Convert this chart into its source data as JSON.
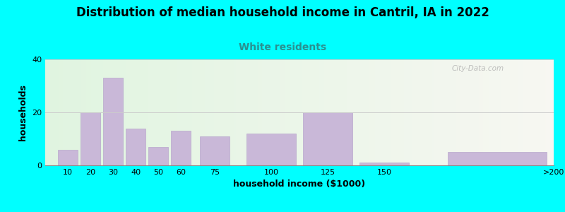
{
  "title": "Distribution of median household income in Cantril, IA in 2022",
  "subtitle": "White residents",
  "xlabel": "household income ($1000)",
  "ylabel": "households",
  "background_color": "#00FFFF",
  "bar_color": "#c9b8d8",
  "bar_edge_color": "#b8a8cc",
  "categories": [
    "10",
    "20",
    "30",
    "40",
    "50",
    "60",
    "75",
    "100",
    "125",
    "150",
    ">200"
  ],
  "values": [
    6,
    20,
    33,
    14,
    7,
    13,
    11,
    12,
    20,
    1,
    5
  ],
  "bar_lefts": [
    5,
    15,
    25,
    35,
    45,
    55,
    67.5,
    87.5,
    112.5,
    137.5,
    175
  ],
  "bar_widths": [
    10,
    10,
    10,
    10,
    10,
    10,
    15,
    25,
    25,
    25,
    50
  ],
  "xlim": [
    0,
    225
  ],
  "ylim": [
    0,
    40
  ],
  "yticks": [
    0,
    20,
    40
  ],
  "xtick_positions": [
    10,
    20,
    30,
    40,
    50,
    60,
    75,
    100,
    125,
    150,
    225
  ],
  "xtick_labels": [
    "10",
    "20",
    "30",
    "40",
    "50",
    "60",
    "75",
    "100",
    "125",
    "150",
    ">200"
  ],
  "grid_color": "#cccccc",
  "title_fontsize": 12,
  "subtitle_fontsize": 10,
  "subtitle_color": "#2a9090",
  "axis_label_fontsize": 9,
  "tick_fontsize": 8,
  "watermark_text": "City-Data.com"
}
